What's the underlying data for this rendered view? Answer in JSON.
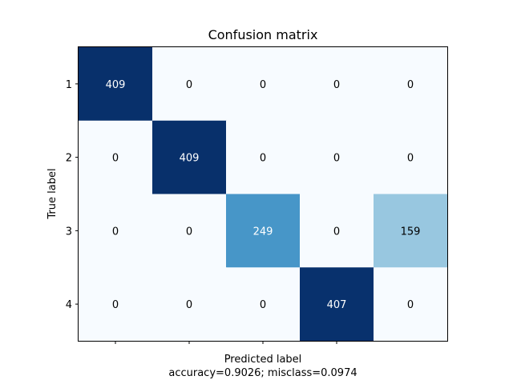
{
  "chart_data": {
    "type": "heatmap",
    "title": "Confusion matrix",
    "xlabel": "Predicted label",
    "xlabel_sub": "accuracy=0.9026; misclass=0.0974",
    "ylabel": "True label",
    "row_labels": [
      "1",
      "2",
      "3",
      "4"
    ],
    "x_tick_count": 4,
    "columns": 5,
    "values": [
      [
        409,
        0,
        0,
        0,
        0
      ],
      [
        0,
        409,
        0,
        0,
        0
      ],
      [
        0,
        0,
        249,
        0,
        159
      ],
      [
        0,
        0,
        0,
        407,
        0
      ]
    ],
    "vmax": 409,
    "colormap": "Blues",
    "colors": {
      "low": "#f7fbff",
      "high": "#08306b",
      "text_light": "#ffffff",
      "text_dark": "#000000"
    }
  }
}
